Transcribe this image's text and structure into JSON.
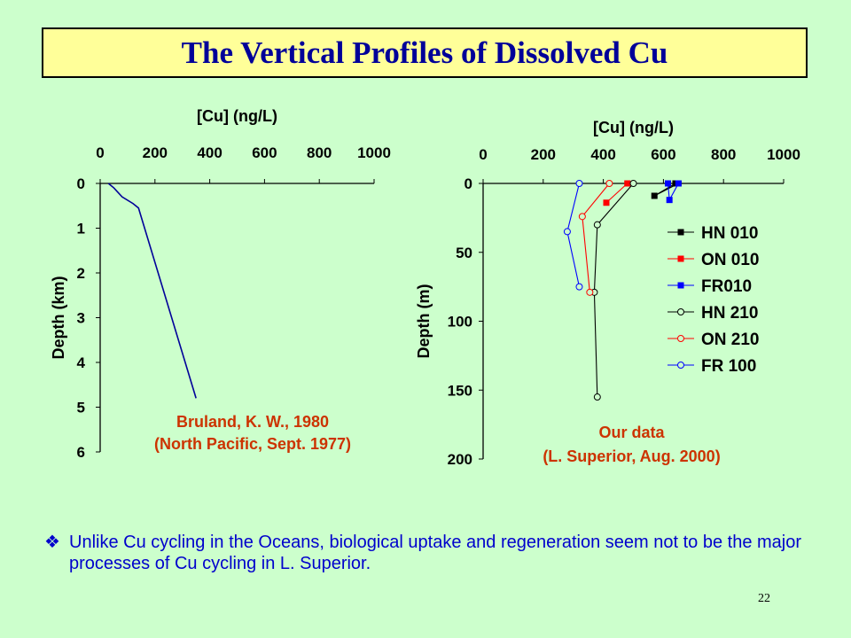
{
  "title": "The Vertical Profiles of Dissolved Cu",
  "page_number": "22",
  "bullet": {
    "icon": "diamond-bullet-icon",
    "text": "Unlike Cu cycling in the Oceans, biological uptake and regeneration seem not to be the major processes of Cu cycling in L. Superior."
  },
  "captions": {
    "left_line1": "Bruland, K. W., 1980",
    "left_line2": "(North Pacific, Sept. 1977)",
    "right_line1": "Our data",
    "right_line2": "(L. Superior, Aug. 2000)"
  },
  "chart_data": [
    {
      "type": "line",
      "xlabel": "[Cu] (ng/L)",
      "ylabel": "Depth (km)",
      "xlim": [
        0,
        1000
      ],
      "ylim": [
        0,
        6
      ],
      "xticks": [
        0,
        200,
        400,
        600,
        800,
        1000
      ],
      "yticks": [
        0,
        1,
        2,
        3,
        4,
        5,
        6
      ],
      "y_inverted": true,
      "x_axis_position": "top",
      "series": [
        {
          "color": "#000099",
          "points": [
            [
              30,
              0
            ],
            [
              50,
              0.1
            ],
            [
              80,
              0.3
            ],
            [
              120,
              0.45
            ],
            [
              140,
              0.55
            ],
            [
              350,
              4.8
            ]
          ]
        }
      ]
    },
    {
      "type": "line",
      "xlabel": "[Cu] (ng/L)",
      "ylabel": "Depth (m)",
      "xlim": [
        0,
        1000
      ],
      "ylim": [
        0,
        200
      ],
      "xticks": [
        0,
        200,
        400,
        600,
        800,
        1000
      ],
      "yticks": [
        0,
        50,
        100,
        150,
        200
      ],
      "y_inverted": true,
      "x_axis_position": "top",
      "legend_position": "right",
      "series": [
        {
          "name": "HN 010",
          "color": "#000000",
          "marker": "square-filled",
          "points": [
            [
              650,
              0
            ],
            [
              570,
              9
            ],
            [
              640,
              0
            ]
          ]
        },
        {
          "name": "ON 010",
          "color": "#ff0000",
          "marker": "square-filled",
          "points": [
            [
              480,
              0
            ],
            [
              410,
              14
            ]
          ]
        },
        {
          "name": "FR010",
          "color": "#0000ff",
          "marker": "square-filled",
          "points": [
            [
              615,
              0
            ],
            [
              620,
              12
            ],
            [
              650,
              0
            ]
          ]
        },
        {
          "name": "HN 210",
          "color": "#000000",
          "marker": "circle-open",
          "points": [
            [
              500,
              0
            ],
            [
              380,
              30
            ],
            [
              370,
              79
            ],
            [
              380,
              155
            ]
          ]
        },
        {
          "name": "ON 210",
          "color": "#ff0000",
          "marker": "circle-open",
          "points": [
            [
              420,
              0
            ],
            [
              330,
              24
            ],
            [
              355,
              79
            ]
          ]
        },
        {
          "name": "FR 100",
          "color": "#0000ff",
          "marker": "circle-open",
          "points": [
            [
              320,
              0
            ],
            [
              280,
              35
            ],
            [
              320,
              75
            ]
          ]
        }
      ]
    }
  ]
}
